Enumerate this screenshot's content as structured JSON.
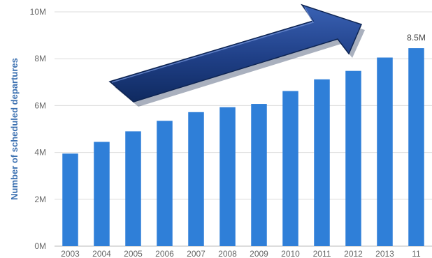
{
  "chart_data": {
    "type": "bar",
    "title": "",
    "xlabel": "",
    "ylabel": "Number of scheduled departures",
    "categories": [
      "2003",
      "2004",
      "2005",
      "2006",
      "2007",
      "2008",
      "2009",
      "2010",
      "2011",
      "2012",
      "2013",
      "11"
    ],
    "values": [
      3.95,
      4.45,
      4.9,
      5.35,
      5.72,
      5.93,
      6.07,
      6.62,
      7.12,
      7.48,
      8.05,
      8.45
    ],
    "value_unit": "M",
    "ylim": [
      0,
      10
    ],
    "yticks": [
      0,
      2,
      4,
      6,
      8,
      10
    ],
    "ytick_labels": [
      "0M",
      "2M",
      "4M",
      "6M",
      "8M",
      "10M"
    ],
    "grid": true,
    "legend": "none",
    "data_labels": [
      {
        "category_index": 11,
        "text": "8.5M"
      }
    ],
    "annotation": "upward trend arrow",
    "colors": {
      "bar": "#2f7fd8",
      "arrow_fill": "#1f3f86",
      "arrow_edge": "#0d2452",
      "label": "#3a6fb0"
    }
  }
}
